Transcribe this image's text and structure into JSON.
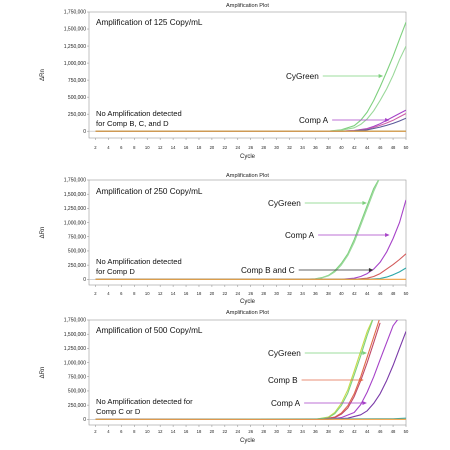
{
  "chart_data": [
    {
      "type": "line",
      "title": "Amplification Plot",
      "xlabel": "Cycle",
      "ylabel": "ΔRn",
      "xlim": [
        1,
        50
      ],
      "ylim": [
        -100000,
        1750000
      ],
      "xticks": [
        2,
        4,
        6,
        8,
        10,
        12,
        14,
        16,
        18,
        20,
        22,
        24,
        26,
        28,
        30,
        32,
        34,
        36,
        38,
        40,
        42,
        44,
        46,
        48,
        50
      ],
      "yticks": [
        0,
        250000,
        500000,
        750000,
        1000000,
        1250000,
        1500000,
        1750000
      ],
      "ytick_labels": [
        "0",
        "250,000",
        "500,000",
        "750,000",
        "1,000,000",
        "1,250,000",
        "1,500,000",
        "1,750,000"
      ],
      "grid": false,
      "annotation": "Amplification of 125 Copy/mL",
      "note_lines": [
        "No Amplification detected",
        "for Comp B, C, and D"
      ],
      "labels": [
        {
          "text": "CyGreen",
          "color": "#7ed07e",
          "target_x": 46,
          "target_y": 500000
        },
        {
          "text": "Comp A",
          "color": "#a642c8",
          "target_x": 47,
          "target_y": 150000
        }
      ],
      "series": [
        {
          "color": "#7ed07e",
          "x": [
            38,
            40,
            42,
            43,
            44,
            45,
            46,
            47,
            48,
            49,
            50
          ],
          "y": [
            0,
            20000,
            80000,
            160000,
            280000,
            450000,
            650000,
            870000,
            1100000,
            1350000,
            1600000
          ]
        },
        {
          "color": "#9ad89a",
          "x": [
            38,
            40,
            42,
            43,
            44,
            45,
            46,
            47,
            48,
            49,
            50
          ],
          "y": [
            0,
            15000,
            50000,
            100000,
            180000,
            300000,
            450000,
            620000,
            820000,
            1050000,
            1250000
          ]
        },
        {
          "color": "#a642c8",
          "x": [
            40,
            42,
            44,
            45,
            46,
            47,
            48,
            49,
            50
          ],
          "y": [
            0,
            10000,
            40000,
            70000,
            110000,
            160000,
            210000,
            260000,
            310000
          ]
        },
        {
          "color": "#cc5fa8",
          "x": [
            40,
            42,
            44,
            45,
            46,
            47,
            48,
            49,
            50
          ],
          "y": [
            0,
            8000,
            30000,
            55000,
            85000,
            120000,
            160000,
            210000,
            260000
          ]
        },
        {
          "color": "#5a5a9a",
          "x": [
            40,
            42,
            44,
            45,
            46,
            47,
            48,
            49,
            50
          ],
          "y": [
            0,
            5000,
            20000,
            40000,
            60000,
            85000,
            115000,
            150000,
            190000
          ]
        },
        {
          "color": "#d25a5a",
          "x": [
            2,
            50
          ],
          "y": [
            0,
            0
          ]
        },
        {
          "color": "#2ca8a8",
          "x": [
            2,
            50
          ],
          "y": [
            0,
            0
          ]
        },
        {
          "color": "#f0a040",
          "x": [
            2,
            50
          ],
          "y": [
            0,
            0
          ]
        }
      ]
    },
    {
      "type": "line",
      "title": "Amplification Plot",
      "xlabel": "Cycle",
      "ylabel": "ΔRn",
      "xlim": [
        1,
        50
      ],
      "ylim": [
        -100000,
        1750000
      ],
      "xticks": [
        2,
        4,
        6,
        8,
        10,
        12,
        14,
        16,
        18,
        20,
        22,
        24,
        26,
        28,
        30,
        32,
        34,
        36,
        38,
        40,
        42,
        44,
        46,
        48,
        50
      ],
      "yticks": [
        0,
        250000,
        500000,
        750000,
        1000000,
        1250000,
        1500000,
        1750000
      ],
      "ytick_labels": [
        "0",
        "250,000",
        "500,000",
        "750,000",
        "1,000,000",
        "1,250,000",
        "1,500,000",
        "1,750,000"
      ],
      "grid": false,
      "annotation": "Amplification of 250 Copy/mL",
      "note_lines": [
        "No Amplification detected",
        "for Comp D"
      ],
      "labels": [
        {
          "text": "CyGreen",
          "color": "#7ed07e",
          "target_x": 43.5,
          "target_y": 1400000
        },
        {
          "text": "Comp A",
          "color": "#a642c8",
          "target_x": 47,
          "target_y": 800000
        },
        {
          "text": "Comp B and C",
          "color": "#333333",
          "target_x": 44.5,
          "target_y": 80000
        }
      ],
      "series": [
        {
          "color": "#7ed07e",
          "x": [
            34,
            36,
            37,
            38,
            39,
            40,
            41,
            42,
            43,
            44,
            45,
            46
          ],
          "y": [
            0,
            10000,
            30000,
            70000,
            150000,
            280000,
            450000,
            700000,
            1000000,
            1300000,
            1600000,
            1800000
          ]
        },
        {
          "color": "#9ad89a",
          "x": [
            34,
            36,
            37,
            38,
            39,
            40,
            41,
            42,
            43,
            44,
            45,
            46
          ],
          "y": [
            0,
            8000,
            25000,
            60000,
            130000,
            250000,
            420000,
            650000,
            950000,
            1250000,
            1550000,
            1800000
          ]
        },
        {
          "color": "#a642c8",
          "x": [
            40,
            42,
            43,
            44,
            45,
            46,
            47,
            48,
            49,
            50
          ],
          "y": [
            0,
            20000,
            50000,
            100000,
            180000,
            300000,
            480000,
            720000,
            1000000,
            1400000
          ]
        },
        {
          "color": "#d25a5a",
          "x": [
            42,
            44,
            45,
            46,
            47,
            48,
            49,
            50
          ],
          "y": [
            0,
            20000,
            50000,
            100000,
            180000,
            260000,
            350000,
            450000
          ]
        },
        {
          "color": "#2ca8a8",
          "x": [
            44,
            46,
            47,
            48,
            49,
            50
          ],
          "y": [
            0,
            15000,
            40000,
            80000,
            130000,
            200000
          ]
        },
        {
          "color": "#f0a040",
          "x": [
            2,
            50
          ],
          "y": [
            0,
            0
          ]
        }
      ]
    },
    {
      "type": "line",
      "title": "Amplification Plot",
      "xlabel": "Cycle",
      "ylabel": "ΔRn",
      "xlim": [
        1,
        50
      ],
      "ylim": [
        -100000,
        1750000
      ],
      "xticks": [
        2,
        4,
        6,
        8,
        10,
        12,
        14,
        16,
        18,
        20,
        22,
        24,
        26,
        28,
        30,
        32,
        34,
        36,
        38,
        40,
        42,
        44,
        46,
        48,
        50
      ],
      "yticks": [
        0,
        250000,
        500000,
        750000,
        1000000,
        1250000,
        1500000,
        1750000
      ],
      "ytick_labels": [
        "0",
        "250,000",
        "500,000",
        "750,000",
        "1,000,000",
        "1,250,000",
        "1,500,000",
        "1,750,000"
      ],
      "grid": false,
      "annotation": "Amplification of 500 Copy/mL",
      "note_lines": [
        "No Amplification detected for",
        "Comp C or D"
      ],
      "labels": [
        {
          "text": "CyGreen",
          "color": "#7ed07e",
          "target_x": 43.5,
          "target_y": 1050000
        },
        {
          "text": "Comp B",
          "color": "#e06a4a",
          "target_x": 43,
          "target_y": 650000
        },
        {
          "text": "Comp A",
          "color": "#a642c8",
          "target_x": 43.5,
          "target_y": 250000
        }
      ],
      "series": [
        {
          "color": "#c8dc4a",
          "x": [
            36,
            38,
            39,
            40,
            41,
            42,
            43,
            44,
            45
          ],
          "y": [
            0,
            40000,
            120000,
            280000,
            520000,
            850000,
            1200000,
            1550000,
            1800000
          ]
        },
        {
          "color": "#7ed07e",
          "x": [
            36,
            38,
            39,
            40,
            41,
            42,
            43,
            44,
            45
          ],
          "y": [
            0,
            30000,
            100000,
            240000,
            460000,
            780000,
            1120000,
            1480000,
            1800000
          ]
        },
        {
          "color": "#e06a4a",
          "x": [
            37,
            39,
            40,
            41,
            42,
            43,
            44,
            45,
            46
          ],
          "y": [
            0,
            40000,
            110000,
            240000,
            450000,
            750000,
            1100000,
            1450000,
            1800000
          ]
        },
        {
          "color": "#c04a6a",
          "x": [
            37,
            39,
            40,
            41,
            42,
            43,
            44,
            45,
            46
          ],
          "y": [
            0,
            30000,
            90000,
            200000,
            400000,
            680000,
            1000000,
            1350000,
            1700000
          ]
        },
        {
          "color": "#a642c8",
          "x": [
            38,
            40,
            42,
            43,
            44,
            45,
            46,
            47,
            48,
            49
          ],
          "y": [
            0,
            30000,
            120000,
            260000,
            480000,
            750000,
            1050000,
            1350000,
            1650000,
            1800000
          ]
        },
        {
          "color": "#7a3aa8",
          "x": [
            38,
            41,
            43,
            44,
            45,
            46,
            47,
            48,
            49,
            50
          ],
          "y": [
            0,
            20000,
            80000,
            150000,
            280000,
            450000,
            680000,
            950000,
            1250000,
            1550000
          ]
        },
        {
          "color": "#2ca8a8",
          "x": [
            2,
            48,
            50
          ],
          "y": [
            0,
            10000,
            20000
          ]
        },
        {
          "color": "#f0a040",
          "x": [
            2,
            50
          ],
          "y": [
            0,
            0
          ]
        }
      ]
    }
  ]
}
